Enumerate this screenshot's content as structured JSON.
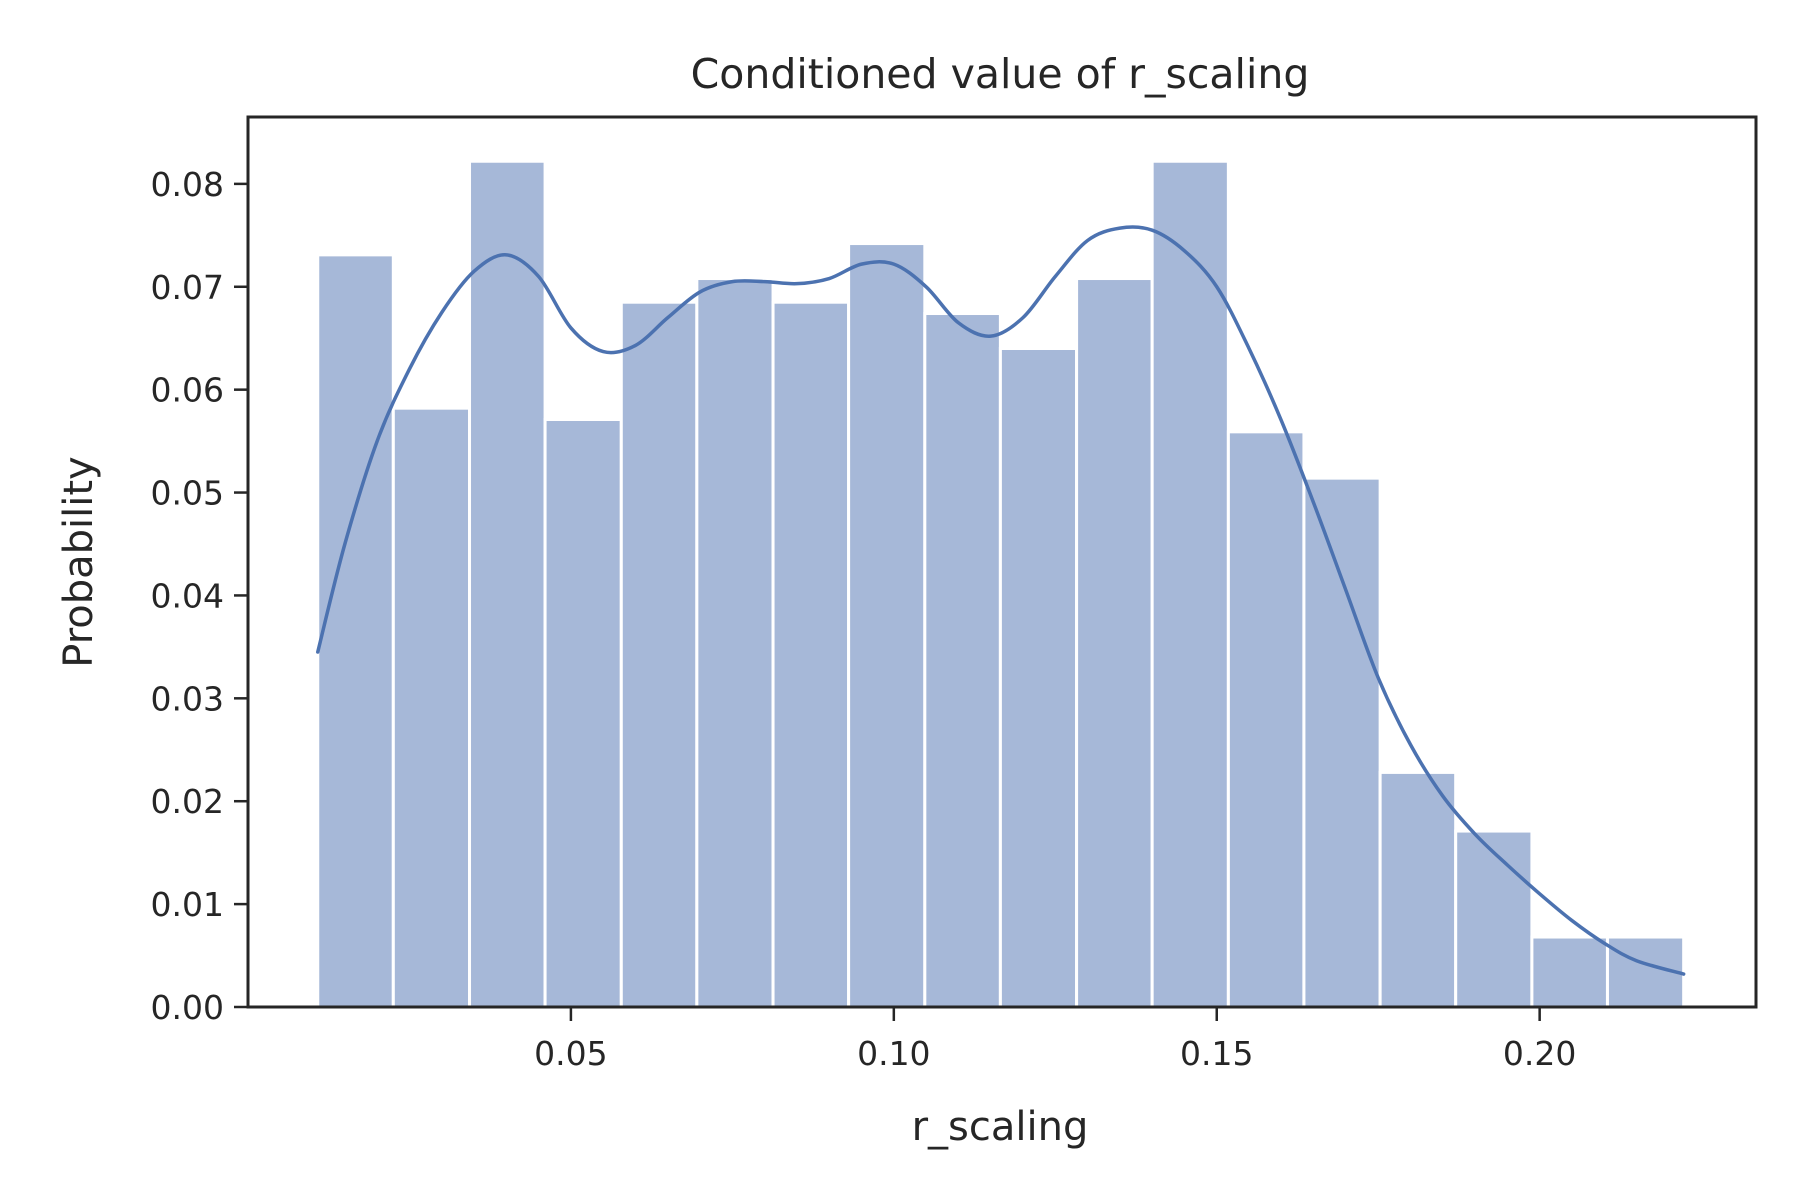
{
  "chart_data": {
    "type": "bar",
    "title": "Conditioned value of r_scaling",
    "xlabel": "r_scaling",
    "ylabel": "Probability",
    "xlim": [
      0.0,
      0.2335
    ],
    "ylim": [
      0.0,
      0.0865
    ],
    "xticks": [
      0.05,
      0.1,
      0.15,
      0.2
    ],
    "xtick_labels": [
      "0.05",
      "0.10",
      "0.15",
      "0.20"
    ],
    "yticks": [
      0.0,
      0.01,
      0.02,
      0.03,
      0.04,
      0.05,
      0.06,
      0.07,
      0.08
    ],
    "ytick_labels": [
      "0.00",
      "0.01",
      "0.02",
      "0.03",
      "0.04",
      "0.05",
      "0.06",
      "0.07",
      "0.08"
    ],
    "bin_edges": [
      0.0108,
      0.0225,
      0.0343,
      0.046,
      0.0578,
      0.0695,
      0.0813,
      0.093,
      0.1048,
      0.1165,
      0.1283,
      0.14,
      0.1518,
      0.1635,
      0.1753,
      0.187,
      0.1988,
      0.2105,
      0.2223
    ],
    "values": [
      0.0731,
      0.0582,
      0.0822,
      0.0571,
      0.0685,
      0.0708,
      0.0685,
      0.0742,
      0.0674,
      0.064,
      0.0708,
      0.0822,
      0.0559,
      0.0514,
      0.0228,
      0.0171,
      0.0068,
      0.0068
    ],
    "kde": {
      "x": [
        0.0108,
        0.015,
        0.02,
        0.025,
        0.03,
        0.035,
        0.04,
        0.045,
        0.05,
        0.055,
        0.06,
        0.065,
        0.07,
        0.075,
        0.08,
        0.085,
        0.09,
        0.095,
        0.1,
        0.105,
        0.11,
        0.115,
        0.12,
        0.125,
        0.13,
        0.135,
        0.14,
        0.145,
        0.15,
        0.155,
        0.16,
        0.165,
        0.17,
        0.175,
        0.18,
        0.185,
        0.19,
        0.195,
        0.2,
        0.205,
        0.21,
        0.215,
        0.2223
      ],
      "y": [
        0.0345,
        0.045,
        0.055,
        0.062,
        0.0675,
        0.0715,
        0.0731,
        0.071,
        0.066,
        0.0637,
        0.0643,
        0.067,
        0.0695,
        0.0705,
        0.0705,
        0.0703,
        0.0708,
        0.0722,
        0.0722,
        0.07,
        0.0665,
        0.0652,
        0.067,
        0.071,
        0.0745,
        0.0757,
        0.0755,
        0.0735,
        0.07,
        0.064,
        0.057,
        0.049,
        0.0405,
        0.032,
        0.0255,
        0.0205,
        0.0168,
        0.0138,
        0.011,
        0.0084,
        0.0062,
        0.0045,
        0.0032
      ]
    },
    "colors": {
      "bar": "#a6b8d8",
      "kde": "#4c72b0"
    },
    "grid": false,
    "legend": "none"
  }
}
